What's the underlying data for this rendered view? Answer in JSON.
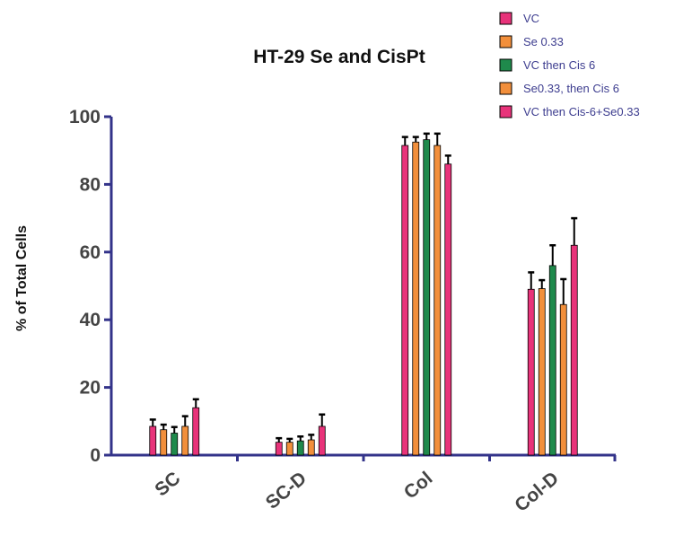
{
  "chart_data": {
    "type": "bar",
    "title": "HT-29 Se and CisPt",
    "ylabel": "% of Total Cells",
    "xlabel": "",
    "ylim": [
      0,
      100
    ],
    "yticks": [
      0,
      20,
      40,
      60,
      80,
      100
    ],
    "categories": [
      "SC",
      "SC-D",
      "Col",
      "Col-D"
    ],
    "error_bars": true,
    "legend_position": "top-right",
    "axis_color": "#33338a",
    "series": [
      {
        "name": "VC",
        "color": "#e8337a",
        "values": [
          8.5,
          3.8,
          91.5,
          49
        ],
        "errors": [
          2.0,
          1.2,
          2.5,
          5.0
        ]
      },
      {
        "name": "Se 0.33",
        "color": "#f28f3b",
        "values": [
          7.5,
          3.8,
          92.5,
          49.2
        ],
        "errors": [
          1.5,
          1.0,
          1.5,
          2.5
        ]
      },
      {
        "name": "VC then Cis 6",
        "color": "#1f8a4c",
        "values": [
          6.5,
          4.2,
          93.2,
          56
        ],
        "errors": [
          1.8,
          1.3,
          1.8,
          6.0
        ]
      },
      {
        "name": "Se0.33, then Cis 6",
        "color": "#f28f3b",
        "values": [
          8.5,
          4.5,
          91.5,
          44.5
        ],
        "errors": [
          3.0,
          1.5,
          3.5,
          7.5
        ]
      },
      {
        "name": "VC then Cis-6+Se0.33",
        "color": "#e8337a",
        "values": [
          14,
          8.5,
          86,
          62
        ],
        "errors": [
          2.5,
          3.5,
          2.5,
          8.0
        ]
      }
    ]
  }
}
